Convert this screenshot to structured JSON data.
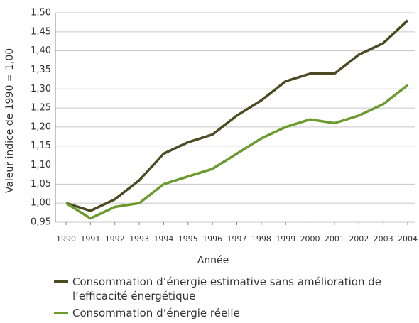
{
  "chart_data": {
    "type": "line",
    "y_label": "Valeur indice de 1990 = 1,00",
    "x_label": "Année",
    "x": [
      1990,
      1991,
      1992,
      1993,
      1994,
      1995,
      1996,
      1997,
      1998,
      1999,
      2000,
      2001,
      2002,
      2003,
      2004
    ],
    "xlim": [
      1990,
      2004
    ],
    "xticks": [
      1990,
      1991,
      1992,
      1993,
      1994,
      1995,
      1996,
      1997,
      1998,
      1999,
      2000,
      2001,
      2002,
      2003,
      2004
    ],
    "ylim": [
      0.95,
      1.5
    ],
    "yticks": [
      {
        "value": 0.95,
        "label": "0,95"
      },
      {
        "value": 1.0,
        "label": "1,00"
      },
      {
        "value": 1.05,
        "label": "1,05"
      },
      {
        "value": 1.1,
        "label": "1,10"
      },
      {
        "value": 1.15,
        "label": "1,15"
      },
      {
        "value": 1.2,
        "label": "1,20"
      },
      {
        "value": 1.25,
        "label": "1,25"
      },
      {
        "value": 1.3,
        "label": "1,30"
      },
      {
        "value": 1.35,
        "label": "1,35"
      },
      {
        "value": 1.4,
        "label": "1,40"
      },
      {
        "value": 1.45,
        "label": "1,45"
      },
      {
        "value": 1.5,
        "label": "1,50"
      }
    ],
    "grid": true,
    "legend": "bottom",
    "series": [
      {
        "name": "Consommation d’énergie estimative sans amélioration de l’efficacité énergétique",
        "color": "#4b4a22",
        "values": [
          1.0,
          0.98,
          1.01,
          1.06,
          1.13,
          1.16,
          1.18,
          1.23,
          1.27,
          1.32,
          1.34,
          1.34,
          1.39,
          1.42,
          1.48
        ]
      },
      {
        "name": "Consommation d’énergie réelle",
        "color": "#6b9a2f",
        "values": [
          1.0,
          0.96,
          0.99,
          1.0,
          1.05,
          1.07,
          1.09,
          1.13,
          1.17,
          1.2,
          1.22,
          1.21,
          1.23,
          1.26,
          1.31
        ]
      }
    ]
  }
}
